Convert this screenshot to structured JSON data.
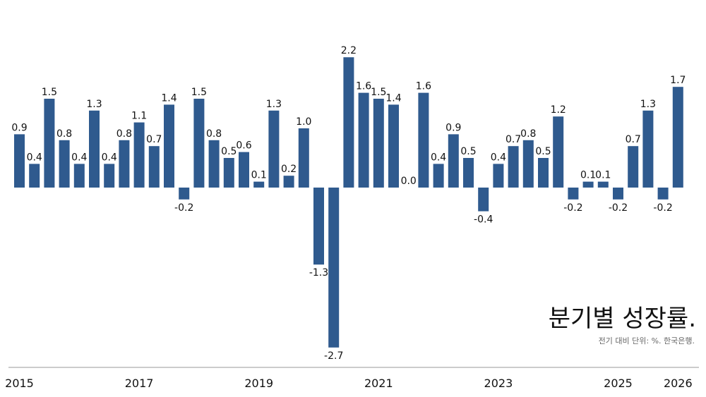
{
  "chart_data": {
    "type": "bar",
    "title": "분기별 성장률.",
    "subtitle": "전기 대비 단위: %. 한국은행.",
    "bar_color": "#2f5a8e",
    "axis_color": "#999999",
    "ylim": [
      -2.7,
      2.2
    ],
    "year_ticks": [
      {
        "label": "2015",
        "index": 0
      },
      {
        "label": "2017",
        "index": 8
      },
      {
        "label": "2019",
        "index": 16
      },
      {
        "label": "2021",
        "index": 24
      },
      {
        "label": "2023",
        "index": 32
      },
      {
        "label": "2025",
        "index": 40
      },
      {
        "label": "2026",
        "index": 44
      }
    ],
    "values": [
      0.9,
      0.4,
      1.5,
      0.8,
      0.4,
      1.3,
      0.4,
      0.8,
      1.1,
      0.7,
      1.4,
      -0.2,
      1.5,
      0.8,
      0.5,
      0.6,
      0.1,
      1.3,
      0.2,
      1.0,
      -1.3,
      -2.7,
      2.2,
      1.6,
      1.5,
      1.4,
      0.0,
      1.6,
      0.4,
      0.9,
      0.5,
      -0.4,
      0.4,
      0.7,
      0.8,
      0.5,
      1.2,
      -0.2,
      0.1,
      0.1,
      -0.2,
      0.7,
      1.3,
      -0.2,
      1.7
    ],
    "labels": [
      "0.9",
      "0.4",
      "1.5",
      "0.8",
      "0.4",
      "1.3",
      "0.4",
      "0.8",
      "1.1",
      "0.7",
      "1.4",
      "-0.2",
      "1.5",
      "0.8",
      "0.5",
      "0.6",
      "0.1",
      "1.3",
      "0.2",
      "1.0",
      "-1.3",
      "-2.7",
      "2.2",
      "1.6",
      "1.5",
      "1.4",
      "0.0",
      "1.6",
      "0.4",
      "0.9",
      "0.5",
      "-0.4",
      "0.4",
      "0.7",
      "0.8",
      "0.5",
      "1.2",
      "-0.2",
      "0.1",
      "0.1",
      "-0.2",
      "0.7",
      "1.3",
      "-0.2",
      "1.7"
    ]
  }
}
